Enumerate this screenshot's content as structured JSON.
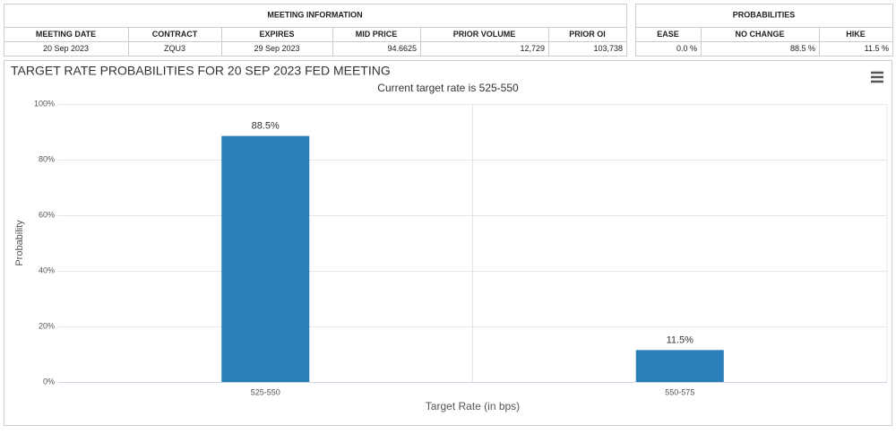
{
  "meeting_info": {
    "title": "MEETING INFORMATION",
    "headers": [
      "MEETING DATE",
      "CONTRACT",
      "EXPIRES",
      "MID PRICE",
      "PRIOR VOLUME",
      "PRIOR OI"
    ],
    "row": [
      "20 Sep 2023",
      "ZQU3",
      "29 Sep 2023",
      "94.6625",
      "12,729",
      "103,738"
    ]
  },
  "probabilities": {
    "title": "PROBABILITIES",
    "headers": [
      "EASE",
      "NO CHANGE",
      "HIKE"
    ],
    "row": [
      "0.0 %",
      "88.5 %",
      "11.5 %"
    ]
  },
  "chart_data": {
    "type": "bar",
    "title": "TARGET RATE PROBABILITIES FOR 20 SEP 2023 FED MEETING",
    "subtitle": "Current target rate is 525-550",
    "x_label": "Target Rate (in bps)",
    "y_label": "Probability",
    "categories": [
      "525-550",
      "550-575"
    ],
    "values": [
      88.5,
      11.5
    ],
    "value_labels": [
      "88.5%",
      "11.5%"
    ],
    "color": "#2b7fb8",
    "ylim": [
      0,
      100
    ],
    "yticks": [
      {
        "value": 0,
        "label": "0%"
      },
      {
        "value": 20,
        "label": "20%"
      },
      {
        "value": 40,
        "label": "40%"
      },
      {
        "value": 60,
        "label": "60%"
      },
      {
        "value": 80,
        "label": "80%"
      },
      {
        "value": 100,
        "label": "100%"
      }
    ],
    "grid": true
  }
}
